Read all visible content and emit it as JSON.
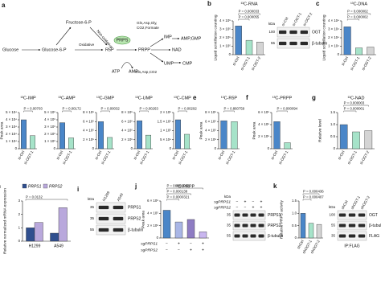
{
  "pathway": {
    "label": "a",
    "nodes": [
      "Glucose",
      "Glucose-6-P",
      "Fructose-6-P",
      "R5P",
      "PRPS",
      "PRPP",
      "IMP",
      "AMP,GMP",
      "NAD",
      "UMP",
      "CMP",
      "ATP",
      "AMP"
    ],
    "edge_labels": [
      "Oxidative",
      "Non-oxidative",
      "Gln,Asp,Gly,",
      "CO2,Formate",
      "Gln,Asp,CO2"
    ]
  },
  "chart_data": [
    {
      "type": "bar",
      "label": "b",
      "title": "¹³C-RNA",
      "ylabel": "Liquid scintillation counting",
      "categories": [
        "si-Ctrl",
        "si-OGT-1",
        "si-OGT-2"
      ],
      "values": [
        340000,
        170000,
        150000
      ],
      "colors": [
        "#4a86c8",
        "#a6e3c9",
        "#d4d4d4"
      ],
      "ylim": [
        0,
        400000
      ],
      "yticks": [
        0,
        {
          "value": 100000,
          "label": "1 × 10⁵"
        },
        {
          "value": 200000,
          "label": "2 × 10⁵"
        },
        {
          "value": 300000,
          "label": "3 × 10⁵"
        },
        {
          "value": 400000,
          "label": "4 × 10⁵"
        }
      ],
      "pvalues": [
        "P = 0.000055",
        "P = 0.000033"
      ]
    },
    {
      "type": "bar",
      "label": "c",
      "title": "¹³C-DNA",
      "ylabel": "Liquid scintillation counting",
      "categories": [
        "si-Ctrl",
        "si-OGT-1",
        "si-OGT-2"
      ],
      "values": [
        33000,
        8000,
        9000
      ],
      "colors": [
        "#4a86c8",
        "#a6e3c9",
        "#d4d4d4"
      ],
      "ylim": [
        0,
        40000
      ],
      "yticks": [
        0,
        {
          "value": 10000,
          "label": "1 × 10⁴"
        },
        {
          "value": 20000,
          "label": "2 × 10⁴"
        },
        {
          "value": 30000,
          "label": "3 × 10⁴"
        },
        {
          "value": 40000,
          "label": "4 × 10⁴"
        }
      ],
      "pvalues": [
        "P = 0.000002",
        "P = 0.000002"
      ]
    },
    {
      "type": "bar",
      "label": "d",
      "title": "¹³C-IMP",
      "ylabel": "Peak area",
      "categories": [
        "si-Ctrl",
        "si-OGT-1"
      ],
      "values": [
        40000,
        18000
      ],
      "colors": [
        "#4a86c8",
        "#a6e3c9"
      ],
      "ylim": [
        0,
        50000
      ],
      "yticks": [
        0,
        {
          "value": 10000,
          "label": "1 × 10⁴"
        },
        {
          "value": 20000,
          "label": "2 × 10⁴"
        },
        {
          "value": 30000,
          "label": "3 × 10⁴"
        },
        {
          "value": 40000,
          "label": "4 × 10⁴"
        },
        {
          "value": 50000,
          "label": "5 × 10⁴"
        }
      ],
      "pvalues": [
        "P = 0.00703"
      ]
    },
    {
      "type": "bar",
      "title": "¹³C-AMP",
      "categories": [
        "si-Ctrl",
        "si-OGT-1"
      ],
      "values": [
        3600000,
        1500000
      ],
      "colors": [
        "#4a86c8",
        "#a6e3c9"
      ],
      "ylim": [
        0,
        5000000
      ],
      "yticks": [
        0,
        {
          "value": 1000000,
          "label": "1 × 10⁶"
        },
        {
          "value": 2000000,
          "label": "2 × 10⁶"
        },
        {
          "value": 3000000,
          "label": "3 × 10⁶"
        },
        {
          "value": 4000000,
          "label": "4 × 10⁶"
        },
        {
          "value": 5000000,
          "label": "5 × 10⁶"
        }
      ],
      "pvalues": [
        "P = 0.00172"
      ]
    },
    {
      "type": "bar",
      "title": "¹³C-GMP",
      "categories": [
        "si-Ctrl",
        "si-OGT-1"
      ],
      "values": [
        600000,
        250000
      ],
      "colors": [
        "#4a86c8",
        "#a6e3c9"
      ],
      "ylim": [
        0,
        800000
      ],
      "yticks": [
        0,
        {
          "value": 200000,
          "label": "2 × 10⁵"
        },
        {
          "value": 400000,
          "label": "4 × 10⁵"
        },
        {
          "value": 600000,
          "label": "6 × 10⁵"
        },
        {
          "value": 800000,
          "label": "8 × 10⁵"
        }
      ],
      "pvalues": [
        "P = 0.00032"
      ]
    },
    {
      "type": "bar",
      "title": "¹³C-UMP",
      "categories": [
        "si-Ctrl",
        "si-OGT-1"
      ],
      "values": [
        620000,
        300000
      ],
      "colors": [
        "#4a86c8",
        "#a6e3c9"
      ],
      "ylim": [
        0,
        800000
      ],
      "yticks": [
        0,
        {
          "value": 200000,
          "label": "2 × 10⁵"
        },
        {
          "value": 400000,
          "label": "4 × 10⁵"
        },
        {
          "value": 600000,
          "label": "6 × 10⁵"
        },
        {
          "value": 800000,
          "label": "8 × 10⁵"
        }
      ],
      "pvalues": [
        "P = 0.00263"
      ]
    },
    {
      "type": "bar",
      "title": "¹³C-CMP",
      "categories": [
        "si-Ctrl",
        "si-OGT-1"
      ],
      "values": [
        160000,
        80000
      ],
      "colors": [
        "#4a86c8",
        "#a6e3c9"
      ],
      "ylim": [
        0,
        200000
      ],
      "yticks": [
        0,
        {
          "value": 50000,
          "label": "5 × 10⁴"
        },
        {
          "value": 100000,
          "label": "1 × 10⁵"
        },
        {
          "value": 150000,
          "label": "1.5 × 10⁵"
        },
        {
          "value": 200000,
          "label": "2 × 10⁵"
        }
      ],
      "pvalues": [
        "P = 0.00292"
      ]
    },
    {
      "type": "bar",
      "label": "e",
      "title": "¹³C-R5P",
      "ylabel": "Peak area",
      "categories": [
        "si-Ctrl",
        "si-OGT-1"
      ],
      "values": [
        620000,
        600000
      ],
      "colors": [
        "#4a86c8",
        "#a6e3c9"
      ],
      "ylim": [
        0,
        800000
      ],
      "yticks": [
        0,
        {
          "value": 200000,
          "label": "2 × 10⁵"
        },
        {
          "value": 400000,
          "label": "4 × 10⁵"
        },
        {
          "value": 600000,
          "label": "6 × 10⁵"
        },
        {
          "value": 800000,
          "label": "8 × 10⁵"
        }
      ],
      "pvalues": [
        "P = 0.860759"
      ]
    },
    {
      "type": "bar",
      "label": "f",
      "title": "¹³C-PRPP",
      "ylabel": "Peak area",
      "categories": [
        "si-Ctrl",
        "si-OGT-1"
      ],
      "values": [
        450000,
        100000
      ],
      "colors": [
        "#4a86c8",
        "#a6e3c9"
      ],
      "ylim": [
        0,
        600000
      ],
      "yticks": [
        0,
        {
          "value": 200000,
          "label": "2 × 10⁵"
        },
        {
          "value": 400000,
          "label": "4 × 10⁵"
        },
        {
          "value": 600000,
          "label": "6 × 10⁵"
        }
      ],
      "pvalues": [
        "P = 0.000094"
      ]
    },
    {
      "type": "bar",
      "label": "g",
      "title": "¹³C-NAD",
      "ylabel": "Relative level",
      "categories": [
        "si-Ctrl",
        "si-OGT-1",
        "si-OGT-2"
      ],
      "values": [
        1.0,
        0.7,
        0.75
      ],
      "colors": [
        "#4a86c8",
        "#a6e3c9",
        "#d4d4d4"
      ],
      "ylim": [
        0,
        1.5
      ],
      "yticks": [
        0,
        0.5,
        {
          "value": 1,
          "label": "1.0"
        },
        1.5
      ],
      "pvalues": [
        "P = 0.000001",
        "P = 0.000003"
      ]
    },
    {
      "type": "grouped-bar",
      "label": "h",
      "ylabel": "Relative normalized mRNA expression",
      "categories": [
        "H1299",
        "A549"
      ],
      "series": [
        {
          "name": "PRPS1",
          "color": "#2f4f8f",
          "values": [
            1.0,
            0.6
          ]
        },
        {
          "name": "PRPS2",
          "color": "#b9a8dc",
          "values": [
            1.4,
            2.5
          ]
        }
      ],
      "ylim": [
        0,
        3
      ],
      "yticks": [
        0,
        1,
        2,
        3
      ],
      "pvalues": [
        "P = 0.0132"
      ]
    },
    {
      "type": "bar",
      "label": "j",
      "title": "¹³C-PRPP",
      "ylabel": "Peak area",
      "values": [
        450000,
        260000,
        300000,
        100000
      ],
      "colors": [
        "#4a86c8",
        "#a9b6e6",
        "#8e7cc3",
        "#c9b6ef"
      ],
      "ylim": [
        0,
        600000
      ],
      "yticks": [
        0,
        {
          "value": 200000,
          "label": "2 × 10⁵"
        },
        {
          "value": 400000,
          "label": "4 × 10⁵"
        },
        {
          "value": 600000,
          "label": "6 × 10⁵"
        }
      ],
      "conditions": [
        {
          "name": "sgPRPS1",
          "values": [
            "−",
            "+",
            "−",
            "+"
          ]
        },
        {
          "name": "sgPRPS2",
          "values": [
            "−",
            "−",
            "+",
            "+"
          ]
        }
      ],
      "pvalues": [
        "P = 0.0000321",
        "P = 0.000138",
        "P = 0.0000009"
      ]
    },
    {
      "type": "bar",
      "label": "k",
      "ylabel": "Relative PRPS activity",
      "categories": [
        "shCtrl",
        "shOGT-1",
        "shOGT-2"
      ],
      "values": [
        1.0,
        0.6,
        0.55
      ],
      "colors": [
        "#4a86c8",
        "#a6e3c9",
        "#d4d4d4"
      ],
      "ylim": [
        0,
        1.5
      ],
      "yticks": [
        0,
        0.5,
        {
          "value": 1,
          "label": "1.0"
        },
        1.5
      ],
      "pvalues": [
        "P = 0.000407",
        "P = 0.000436"
      ]
    }
  ],
  "blots": [
    {
      "kda_title": "kDa",
      "lanes": [
        "si-Ctrl",
        "si-OGT-1",
        "si-OGT-2"
      ],
      "rows": [
        {
          "name": "OGT",
          "kda": "100"
        },
        {
          "name": "β-tubulin",
          "kda": "55"
        }
      ]
    },
    {
      "label": "i",
      "kda_title": "kDa",
      "lanes": [
        "H1299",
        "A549"
      ],
      "rows": [
        {
          "name": "PRPS1",
          "kda": "35"
        },
        {
          "name": "PRPS2",
          "kda": "35"
        },
        {
          "name": "β-tubulin",
          "kda": "55"
        }
      ]
    },
    {
      "kda_title": "kDa",
      "conditions": [
        {
          "name": "sgPRPS1",
          "values": [
            "−",
            "+",
            "−",
            "+"
          ]
        },
        {
          "name": "sgPRPS2",
          "values": [
            "−",
            "−",
            "+",
            "+"
          ]
        }
      ],
      "rows": [
        {
          "name": "PRPS1",
          "kda": "35"
        },
        {
          "name": "PRPS2",
          "kda": "35"
        },
        {
          "name": "β-tubulin",
          "kda": "55"
        }
      ]
    },
    {
      "kda_title": "kDa",
      "lanes": [
        "shCtrl",
        "shOGT-1",
        "shOGT-2"
      ],
      "rows": [
        {
          "name": "OGT",
          "kda": "100"
        },
        {
          "name": "β-tubulin",
          "kda": "55"
        },
        {
          "name": "FLAG",
          "kda": "35"
        }
      ],
      "footer": "IP:FLAG"
    }
  ]
}
